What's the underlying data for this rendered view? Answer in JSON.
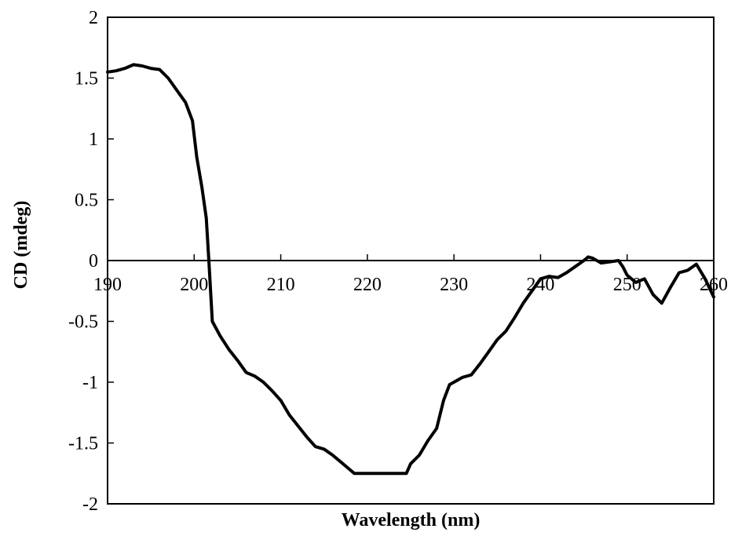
{
  "chart_data": {
    "type": "line",
    "title": "",
    "xlabel": "Wavelength (nm)",
    "ylabel": "CD (mdeg)",
    "xlim": [
      190,
      260
    ],
    "ylim": [
      -2,
      2
    ],
    "xticks": [
      190,
      200,
      210,
      220,
      230,
      240,
      250,
      260
    ],
    "xtick_labels": [
      "190",
      "200",
      "210",
      "220",
      "230",
      "240",
      "250",
      "260"
    ],
    "yticks": [
      2,
      1.5,
      1,
      0.5,
      0,
      -0.5,
      -1,
      -1.5,
      -2
    ],
    "ytick_labels": [
      "2",
      "1.5",
      "1",
      "0.5",
      "0",
      "-0.5",
      "-1",
      "-1.5",
      "-2"
    ],
    "grid": false,
    "legend": "none",
    "series": [
      {
        "color": "#000000",
        "points": [
          [
            190,
            1.55
          ],
          [
            191,
            1.56
          ],
          [
            192,
            1.58
          ],
          [
            193,
            1.61
          ],
          [
            194,
            1.6
          ],
          [
            195,
            1.58
          ],
          [
            196,
            1.57
          ],
          [
            197,
            1.5
          ],
          [
            198,
            1.4
          ],
          [
            199,
            1.3
          ],
          [
            199.8,
            1.15
          ],
          [
            200.3,
            0.85
          ],
          [
            200.9,
            0.6
          ],
          [
            201.4,
            0.35
          ],
          [
            201.7,
            0.0
          ],
          [
            202.1,
            -0.5
          ],
          [
            203,
            -0.62
          ],
          [
            204,
            -0.73
          ],
          [
            205,
            -0.82
          ],
          [
            206,
            -0.92
          ],
          [
            207,
            -0.95
          ],
          [
            208,
            -1.0
          ],
          [
            209,
            -1.07
          ],
          [
            210,
            -1.15
          ],
          [
            211,
            -1.27
          ],
          [
            212,
            -1.36
          ],
          [
            213,
            -1.45
          ],
          [
            214,
            -1.53
          ],
          [
            215,
            -1.55
          ],
          [
            216,
            -1.6
          ],
          [
            217,
            -1.66
          ],
          [
            218,
            -1.72
          ],
          [
            218.5,
            -1.75
          ],
          [
            220,
            -1.75
          ],
          [
            222,
            -1.75
          ],
          [
            224.5,
            -1.75
          ],
          [
            225,
            -1.67
          ],
          [
            226,
            -1.6
          ],
          [
            227,
            -1.48
          ],
          [
            228,
            -1.38
          ],
          [
            228.8,
            -1.15
          ],
          [
            229.5,
            -1.02
          ],
          [
            230,
            -1.0
          ],
          [
            231,
            -0.96
          ],
          [
            232,
            -0.94
          ],
          [
            233,
            -0.85
          ],
          [
            234,
            -0.75
          ],
          [
            235,
            -0.65
          ],
          [
            236,
            -0.58
          ],
          [
            237,
            -0.47
          ],
          [
            238,
            -0.35
          ],
          [
            239,
            -0.25
          ],
          [
            240,
            -0.15
          ],
          [
            241,
            -0.13
          ],
          [
            242,
            -0.14
          ],
          [
            243,
            -0.1
          ],
          [
            244,
            -0.05
          ],
          [
            245,
            0.0
          ],
          [
            245.5,
            0.03
          ],
          [
            246,
            0.02
          ],
          [
            247,
            -0.02
          ],
          [
            248,
            -0.01
          ],
          [
            249,
            0.0
          ],
          [
            249.5,
            -0.05
          ],
          [
            250,
            -0.12
          ],
          [
            251,
            -0.18
          ],
          [
            252,
            -0.15
          ],
          [
            253,
            -0.28
          ],
          [
            254,
            -0.35
          ],
          [
            255,
            -0.22
          ],
          [
            256,
            -0.1
          ],
          [
            257,
            -0.08
          ],
          [
            258,
            -0.03
          ],
          [
            259,
            -0.15
          ],
          [
            260,
            -0.3
          ]
        ]
      }
    ]
  }
}
